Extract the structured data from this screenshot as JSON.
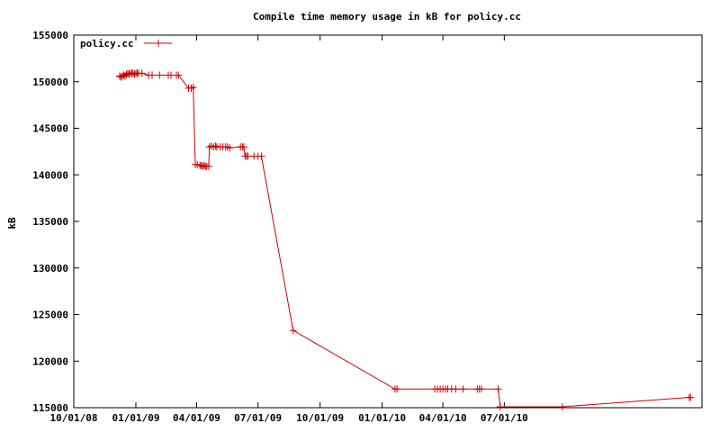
{
  "chart_data": {
    "type": "line",
    "title": "Compile time memory usage in kB for policy.cc",
    "xlabel": "",
    "ylabel": "kB",
    "xlim": [
      "2008-10-01",
      "2011-04-20"
    ],
    "ylim": [
      115000,
      155000
    ],
    "x_ticks": [
      "10/01/08",
      "01/01/09",
      "04/01/09",
      "07/01/09",
      "10/01/09",
      "01/01/10",
      "04/01/10",
      "07/01/10"
    ],
    "y_ticks": [
      115000,
      120000,
      125000,
      130000,
      135000,
      140000,
      145000,
      150000,
      155000
    ],
    "grid": false,
    "legend_position": "top-left",
    "series": [
      {
        "name": "policy.cc",
        "color": "#cc0000",
        "marker": "plus",
        "points": [
          [
            "2008-12-08",
            150600
          ],
          [
            "2008-12-10",
            150500
          ],
          [
            "2008-12-12",
            150600
          ],
          [
            "2008-12-14",
            150700
          ],
          [
            "2008-12-16",
            150600
          ],
          [
            "2008-12-18",
            150800
          ],
          [
            "2008-12-20",
            150900
          ],
          [
            "2008-12-22",
            150800
          ],
          [
            "2008-12-24",
            150900
          ],
          [
            "2008-12-26",
            150900
          ],
          [
            "2008-12-28",
            150900
          ],
          [
            "2008-12-30",
            150800
          ],
          [
            "2009-01-01",
            150900
          ],
          [
            "2009-01-03",
            150900
          ],
          [
            "2009-01-05",
            150900
          ],
          [
            "2009-01-10",
            150900
          ],
          [
            "2009-01-20",
            150700
          ],
          [
            "2009-01-25",
            150700
          ],
          [
            "2009-02-05",
            150700
          ],
          [
            "2009-02-18",
            150700
          ],
          [
            "2009-02-22",
            150700
          ],
          [
            "2009-03-02",
            150700
          ],
          [
            "2009-03-05",
            150700
          ],
          [
            "2009-03-20",
            149300
          ],
          [
            "2009-03-24",
            149300
          ],
          [
            "2009-03-27",
            149400
          ],
          [
            "2009-03-30",
            141100
          ],
          [
            "2009-04-02",
            141100
          ],
          [
            "2009-04-06",
            141000
          ],
          [
            "2009-04-08",
            141000
          ],
          [
            "2009-04-10",
            140900
          ],
          [
            "2009-04-12",
            141000
          ],
          [
            "2009-04-14",
            140900
          ],
          [
            "2009-04-16",
            140900
          ],
          [
            "2009-04-19",
            140900
          ],
          [
            "2009-04-20",
            143000
          ],
          [
            "2009-04-23",
            143100
          ],
          [
            "2009-04-26",
            143000
          ],
          [
            "2009-04-29",
            143100
          ],
          [
            "2009-05-01",
            143000
          ],
          [
            "2009-05-06",
            143000
          ],
          [
            "2009-05-10",
            143000
          ],
          [
            "2009-05-14",
            143000
          ],
          [
            "2009-05-17",
            143000
          ],
          [
            "2009-05-20",
            142900
          ],
          [
            "2009-06-05",
            143000
          ],
          [
            "2009-06-08",
            143000
          ],
          [
            "2009-06-10",
            143000
          ],
          [
            "2009-06-12",
            142000
          ],
          [
            "2009-06-14",
            142000
          ],
          [
            "2009-06-16",
            142000
          ],
          [
            "2009-06-25",
            142000
          ],
          [
            "2009-07-01",
            142000
          ],
          [
            "2009-07-06",
            142000
          ],
          [
            "2009-08-22",
            123300
          ],
          [
            "2010-01-20",
            117000
          ],
          [
            "2010-01-23",
            117000
          ],
          [
            "2010-03-20",
            117000
          ],
          [
            "2010-03-24",
            117000
          ],
          [
            "2010-03-28",
            117000
          ],
          [
            "2010-04-01",
            117000
          ],
          [
            "2010-04-05",
            117000
          ],
          [
            "2010-04-08",
            117000
          ],
          [
            "2010-04-14",
            117000
          ],
          [
            "2010-04-20",
            117000
          ],
          [
            "2010-05-01",
            117000
          ],
          [
            "2010-05-22",
            117000
          ],
          [
            "2010-05-25",
            117000
          ],
          [
            "2010-05-28",
            117000
          ],
          [
            "2010-06-22",
            117000
          ],
          [
            "2010-06-25",
            115100
          ],
          [
            "2010-09-25",
            115100
          ],
          [
            "2011-04-01",
            116100
          ],
          [
            "2011-04-03",
            116100
          ]
        ]
      }
    ]
  }
}
